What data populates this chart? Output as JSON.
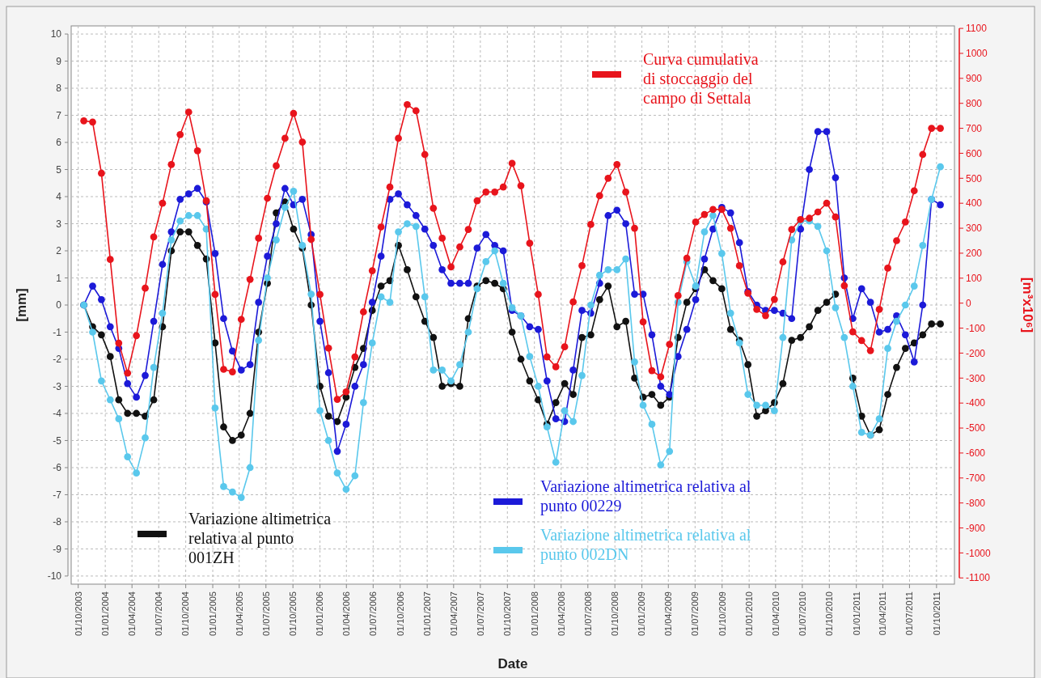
{
  "chart_data": {
    "type": "line",
    "xlabel": "Date",
    "ylabel": "[mm]",
    "y2label": "[m³x10⁶]",
    "grid": true,
    "legend": "bottom",
    "marker": "circle",
    "line_style": "solid",
    "xlim": [
      "2003-09-07",
      "2011-12-01"
    ],
    "ylim": [
      -10.3,
      10.3
    ],
    "y2lim": [
      -1125,
      1110
    ],
    "xticks": [
      {
        "value": "2003-10-01",
        "label": "01/10/2003"
      },
      {
        "value": "2004-01-01",
        "label": "01/01/2004"
      },
      {
        "value": "2004-04-01",
        "label": "01/04/2004"
      },
      {
        "value": "2004-07-01",
        "label": "01/07/2004"
      },
      {
        "value": "2004-10-01",
        "label": "01/10/2004"
      },
      {
        "value": "2005-01-01",
        "label": "01/01/2005"
      },
      {
        "value": "2005-04-01",
        "label": "01/04/2005"
      },
      {
        "value": "2005-07-01",
        "label": "01/07/2005"
      },
      {
        "value": "2005-10-01",
        "label": "01/10/2005"
      },
      {
        "value": "2006-01-01",
        "label": "01/01/2006"
      },
      {
        "value": "2006-04-01",
        "label": "01/04/2006"
      },
      {
        "value": "2006-07-01",
        "label": "01/07/2006"
      },
      {
        "value": "2006-10-01",
        "label": "01/10/2006"
      },
      {
        "value": "2007-01-01",
        "label": "01/01/2007"
      },
      {
        "value": "2007-04-01",
        "label": "01/04/2007"
      },
      {
        "value": "2007-07-01",
        "label": "01/07/2007"
      },
      {
        "value": "2007-10-01",
        "label": "01/10/2007"
      },
      {
        "value": "2008-01-01",
        "label": "01/01/2008"
      },
      {
        "value": "2008-04-01",
        "label": "01/04/2008"
      },
      {
        "value": "2008-07-01",
        "label": "01/07/2008"
      },
      {
        "value": "2008-10-01",
        "label": "01/10/2008"
      },
      {
        "value": "2009-01-01",
        "label": "01/01/2009"
      },
      {
        "value": "2009-04-01",
        "label": "01/04/2009"
      },
      {
        "value": "2009-07-01",
        "label": "01/07/2009"
      },
      {
        "value": "2009-10-01",
        "label": "01/10/2009"
      },
      {
        "value": "2010-01-01",
        "label": "01/01/2010"
      },
      {
        "value": "2010-04-01",
        "label": "01/04/2010"
      },
      {
        "value": "2010-07-01",
        "label": "01/07/2010"
      },
      {
        "value": "2010-10-01",
        "label": "01/10/2010"
      },
      {
        "value": "2011-01-01",
        "label": "01/01/2011"
      },
      {
        "value": "2011-04-01",
        "label": "01/04/2011"
      },
      {
        "value": "2011-07-01",
        "label": "01/07/2011"
      },
      {
        "value": "2011-10-01",
        "label": "01/10/2011"
      }
    ],
    "yticks": [
      -10,
      -9,
      -8,
      -7,
      -6,
      -5,
      -4,
      -3,
      -2,
      -1,
      0,
      1,
      2,
      3,
      4,
      5,
      6,
      7,
      8,
      9,
      10
    ],
    "y2ticks": [
      -1100,
      -1000,
      -900,
      -800,
      -700,
      -600,
      -500,
      -400,
      -300,
      -200,
      -100,
      0,
      100,
      200,
      300,
      400,
      500,
      600,
      700,
      800,
      900,
      1000,
      1100
    ],
    "x": [
      "2003-10-20",
      "2003-11-19",
      "2003-12-19",
      "2004-01-18",
      "2004-02-16",
      "2004-03-17",
      "2004-04-16",
      "2004-05-16",
      "2004-06-14",
      "2004-07-14",
      "2004-08-13",
      "2004-09-12",
      "2004-10-11",
      "2004-11-10",
      "2004-12-10",
      "2005-01-09",
      "2005-02-07",
      "2005-03-09",
      "2005-04-08",
      "2005-05-08",
      "2005-06-06",
      "2005-07-06",
      "2005-08-05",
      "2005-09-04",
      "2005-10-03",
      "2005-11-02",
      "2005-12-02",
      "2006-01-01",
      "2006-01-30",
      "2006-03-01",
      "2006-03-31",
      "2006-04-30",
      "2006-05-29",
      "2006-06-28",
      "2006-07-28",
      "2006-08-27",
      "2006-09-25",
      "2006-10-25",
      "2006-11-24",
      "2006-12-24",
      "2007-01-22",
      "2007-02-21",
      "2007-03-23",
      "2007-04-22",
      "2007-05-21",
      "2007-06-20",
      "2007-07-20",
      "2007-08-19",
      "2007-09-17",
      "2007-10-17",
      "2007-11-16",
      "2007-12-16",
      "2008-01-14",
      "2008-02-13",
      "2008-03-14",
      "2008-04-13",
      "2008-05-12",
      "2008-06-11",
      "2008-07-11",
      "2008-08-10",
      "2008-09-08",
      "2008-10-08",
      "2008-11-07",
      "2008-12-07",
      "2009-01-05",
      "2009-02-04",
      "2009-03-06",
      "2009-04-05",
      "2009-05-04",
      "2009-06-03",
      "2009-07-03",
      "2009-08-02",
      "2009-08-31",
      "2009-09-30",
      "2009-10-30",
      "2009-11-29",
      "2009-12-28",
      "2010-01-27",
      "2010-02-26",
      "2010-03-28",
      "2010-04-26",
      "2010-05-26",
      "2010-06-25",
      "2010-07-25",
      "2010-08-23",
      "2010-09-22",
      "2010-10-22",
      "2010-11-21",
      "2010-12-20",
      "2011-01-19",
      "2011-02-18",
      "2011-03-20",
      "2011-04-18",
      "2011-05-18",
      "2011-06-17",
      "2011-07-17",
      "2011-08-15",
      "2011-09-14",
      "2011-10-14"
    ],
    "series": [
      {
        "name": "Variazione altimetrica relativa al punto 001ZH",
        "color": "#111111",
        "values": [
          0,
          -0.8,
          -1.1,
          -1.9,
          -3.5,
          -4.0,
          -4.0,
          -4.1,
          -3.5,
          -0.8,
          2.0,
          2.7,
          2.7,
          2.2,
          1.7,
          -1.4,
          -4.5,
          -5.0,
          -4.8,
          -4.0,
          -1.0,
          0.8,
          3.4,
          3.8,
          2.8,
          2.1,
          0.0,
          -3.0,
          -4.1,
          -4.3,
          -3.4,
          -2.3,
          -1.6,
          -0.2,
          0.7,
          0.9,
          2.2,
          1.3,
          0.3,
          -0.6,
          -1.2,
          -3.0,
          -2.9,
          -3.0,
          -0.5,
          0.7,
          0.9,
          0.8,
          0.6,
          -1.0,
          -2.0,
          -2.8,
          -3.5,
          -4.4,
          -3.6,
          -2.9,
          -3.3,
          -1.2,
          -1.1,
          0.2,
          0.7,
          -0.8,
          -0.6,
          -2.7,
          -3.4,
          -3.3,
          -3.7,
          -3.4,
          -1.2,
          0.1,
          0.6,
          1.3,
          0.9,
          0.6,
          -0.9,
          -1.3,
          -2.2,
          -4.1,
          -3.9,
          -3.6,
          -2.9,
          -1.3,
          -1.2,
          -0.8,
          -0.2,
          0.1,
          0.4,
          null,
          -2.7,
          -4.1,
          -4.8,
          -4.6,
          -3.3,
          -2.3,
          -1.6,
          -1.4,
          -1.1,
          -0.7,
          -0.7
        ]
      },
      {
        "name": "Variazione altimetrica relativa al punto 00229",
        "color": "#1c1ad8",
        "values": [
          0,
          0.7,
          0.2,
          -0.8,
          -1.6,
          -2.9,
          -3.4,
          -2.6,
          -0.6,
          1.5,
          2.7,
          3.9,
          4.1,
          4.3,
          3.8,
          1.9,
          -0.5,
          -1.7,
          -2.4,
          -2.2,
          0.1,
          1.8,
          3.0,
          4.3,
          3.7,
          3.9,
          2.6,
          -0.6,
          -2.5,
          -5.4,
          -4.4,
          -3.0,
          -2.2,
          0.1,
          1.8,
          3.9,
          4.1,
          3.7,
          3.3,
          2.8,
          2.2,
          1.3,
          0.8,
          0.8,
          0.8,
          2.1,
          2.6,
          2.2,
          2.0,
          -0.2,
          -0.4,
          -0.8,
          -0.9,
          -2.8,
          -4.2,
          -4.3,
          -2.4,
          -0.2,
          -0.3,
          0.8,
          3.3,
          3.5,
          3.0,
          0.4,
          0.4,
          -1.1,
          -3.0,
          -3.3,
          -1.9,
          -0.9,
          0.2,
          1.7,
          2.8,
          3.6,
          3.4,
          2.3,
          0.5,
          0.0,
          -0.2,
          -0.2,
          -0.3,
          -0.5,
          2.8,
          5.0,
          6.4,
          6.4,
          4.7,
          1.0,
          -0.5,
          0.6,
          0.1,
          -1.0,
          -0.9,
          -0.4,
          -1.1,
          -2.1,
          0.0,
          3.9,
          3.7
        ]
      },
      {
        "name": "Variazione altimetrica relativa al punto 002DN",
        "color": "#5ac8ec",
        "values": [
          0,
          -1.0,
          -2.8,
          -3.5,
          -4.2,
          -5.6,
          -6.2,
          -4.9,
          -2.3,
          -0.3,
          2.4,
          3.1,
          3.3,
          3.3,
          2.8,
          -3.8,
          -6.7,
          -6.9,
          -7.1,
          -6.0,
          -1.3,
          1.0,
          2.4,
          3.6,
          4.2,
          2.2,
          0.4,
          -3.9,
          -5.0,
          -6.2,
          -6.8,
          -6.3,
          -3.6,
          -1.4,
          0.3,
          0.1,
          2.7,
          3.0,
          2.9,
          0.3,
          -2.4,
          -2.4,
          -2.8,
          -2.2,
          -1.0,
          0.6,
          1.6,
          2.0,
          0.8,
          -0.1,
          -0.4,
          -1.9,
          -3.0,
          -4.5,
          -5.8,
          -3.9,
          -4.3,
          -2.6,
          0.0,
          1.1,
          1.3,
          1.3,
          1.7,
          -2.1,
          -3.7,
          -4.4,
          -5.9,
          -5.4,
          0.1,
          1.6,
          0.7,
          2.7,
          3.3,
          1.9,
          -0.3,
          -1.4,
          -3.3,
          -3.7,
          -3.7,
          -3.9,
          -1.2,
          2.4,
          3.1,
          3.1,
          2.9,
          2.0,
          -0.1,
          -1.2,
          -3.0,
          -4.7,
          -4.8,
          -4.2,
          -1.6,
          -0.6,
          0.0,
          0.7,
          2.2,
          3.9,
          5.1
        ]
      },
      {
        "name": "Curva cumulativa di stoccaggio del campo di Settala",
        "color": "#e8141c",
        "axis": "y2",
        "values": [
          730,
          725,
          520,
          175,
          -160,
          -280,
          -130,
          60,
          265,
          400,
          555,
          675,
          765,
          610,
          410,
          35,
          -265,
          -275,
          -65,
          95,
          260,
          420,
          550,
          660,
          760,
          645,
          255,
          35,
          -180,
          -385,
          -355,
          -215,
          -35,
          130,
          305,
          465,
          660,
          795,
          770,
          595,
          380,
          260,
          145,
          225,
          295,
          410,
          445,
          445,
          465,
          560,
          470,
          240,
          35,
          -215,
          -255,
          -175,
          5,
          150,
          315,
          430,
          500,
          555,
          445,
          300,
          -75,
          -270,
          -295,
          -165,
          30,
          180,
          325,
          355,
          375,
          375,
          300,
          150,
          40,
          -25,
          -50,
          15,
          165,
          295,
          335,
          340,
          365,
          400,
          345,
          70,
          -115,
          -150,
          -190,
          -25,
          140,
          250,
          325,
          450,
          595,
          700,
          700
        ]
      }
    ]
  }
}
